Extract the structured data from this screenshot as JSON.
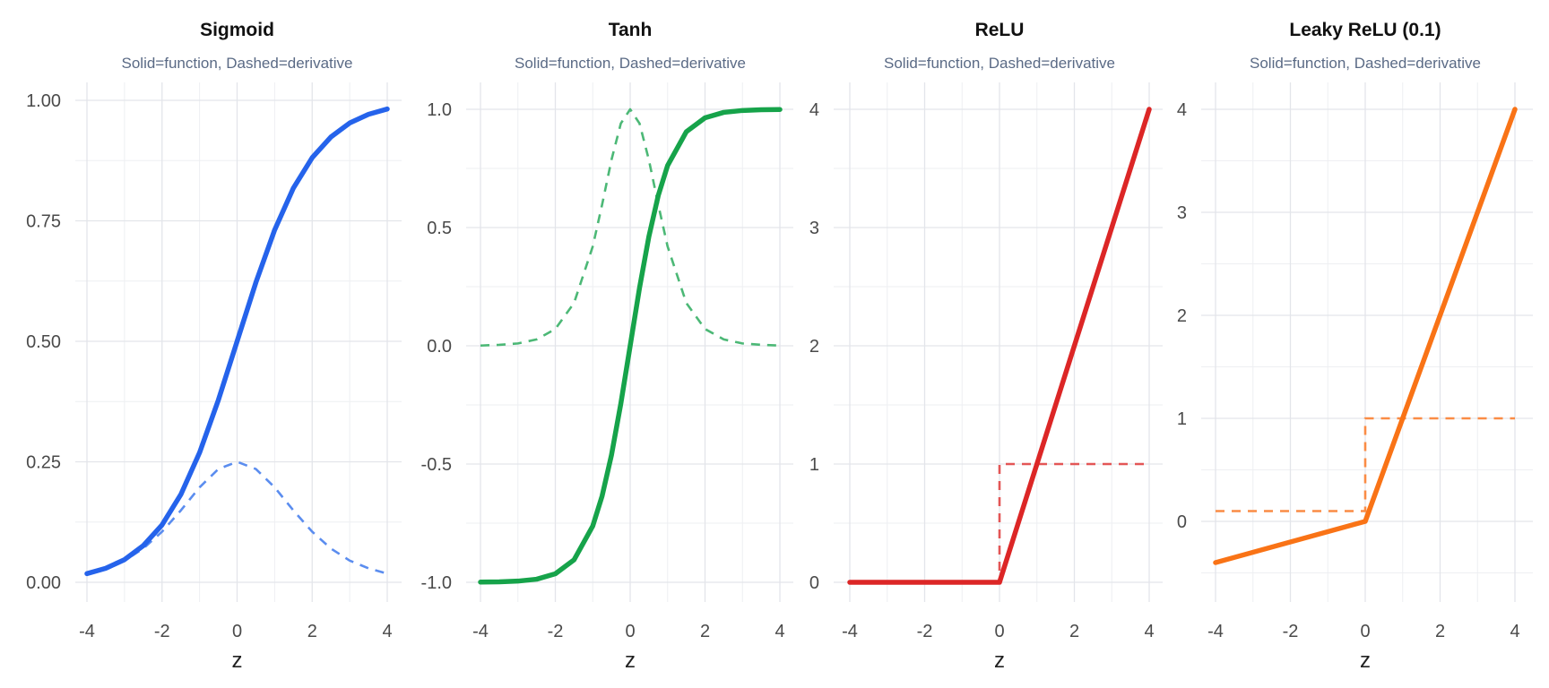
{
  "figure": {
    "subtitle": "Solid=function, Dashed=derivative",
    "xlabel": "z"
  },
  "chart_data": [
    {
      "type": "line",
      "title": "Sigmoid",
      "subtitle": "Solid=function, Dashed=derivative",
      "xlabel": "z",
      "ylabel": "",
      "xlim": [
        -4,
        4
      ],
      "ylim": [
        0,
        1
      ],
      "x_ticks": [
        "-4",
        "-2",
        "0",
        "2",
        "4"
      ],
      "y_ticks": [
        "0.00",
        "0.25",
        "0.50",
        "0.75",
        "1.00"
      ],
      "color": "#2563eb",
      "deriv_color": "#5b8def",
      "grid": true,
      "series": [
        {
          "role": "function",
          "style": "solid",
          "x": [
            -4,
            -3.5,
            -3,
            -2.5,
            -2,
            -1.5,
            -1,
            -0.5,
            0,
            0.5,
            1,
            1.5,
            2,
            2.5,
            3,
            3.5,
            4
          ],
          "y": [
            0.018,
            0.029,
            0.047,
            0.076,
            0.119,
            0.182,
            0.269,
            0.378,
            0.5,
            0.622,
            0.731,
            0.818,
            0.881,
            0.924,
            0.953,
            0.971,
            0.982
          ]
        },
        {
          "role": "derivative",
          "style": "dashed",
          "x": [
            -4,
            -3.5,
            -3,
            -2.5,
            -2,
            -1.5,
            -1,
            -0.5,
            0,
            0.5,
            1,
            1.5,
            2,
            2.5,
            3,
            3.5,
            4
          ],
          "y": [
            0.018,
            0.029,
            0.045,
            0.07,
            0.105,
            0.149,
            0.197,
            0.235,
            0.25,
            0.235,
            0.197,
            0.149,
            0.105,
            0.07,
            0.045,
            0.029,
            0.018
          ]
        }
      ]
    },
    {
      "type": "line",
      "title": "Tanh",
      "subtitle": "Solid=function, Dashed=derivative",
      "xlabel": "z",
      "ylabel": "",
      "xlim": [
        -4,
        4
      ],
      "ylim": [
        -1,
        1
      ],
      "x_ticks": [
        "-4",
        "-2",
        "0",
        "2",
        "4"
      ],
      "y_ticks": [
        "-1.0",
        "-0.5",
        "0.0",
        "0.5",
        "1.0"
      ],
      "color": "#16a34a",
      "deriv_color": "#4cb876",
      "grid": true,
      "series": [
        {
          "role": "function",
          "style": "solid",
          "x": [
            -4,
            -3.5,
            -3,
            -2.5,
            -2,
            -1.5,
            -1,
            -0.75,
            -0.5,
            -0.25,
            0,
            0.25,
            0.5,
            0.75,
            1,
            1.5,
            2,
            2.5,
            3,
            3.5,
            4
          ],
          "y": [
            -0.999,
            -0.998,
            -0.995,
            -0.987,
            -0.964,
            -0.905,
            -0.762,
            -0.635,
            -0.462,
            -0.245,
            0,
            0.245,
            0.462,
            0.635,
            0.762,
            0.905,
            0.964,
            0.987,
            0.995,
            0.998,
            0.999
          ]
        },
        {
          "role": "derivative",
          "style": "dashed",
          "x": [
            -4,
            -3.5,
            -3,
            -2.5,
            -2,
            -1.5,
            -1,
            -0.75,
            -0.5,
            -0.25,
            0,
            0.25,
            0.5,
            0.75,
            1,
            1.5,
            2,
            2.5,
            3,
            3.5,
            4
          ],
          "y": [
            0.001,
            0.004,
            0.01,
            0.027,
            0.071,
            0.181,
            0.42,
            0.597,
            0.786,
            0.94,
            1,
            0.94,
            0.786,
            0.597,
            0.42,
            0.181,
            0.071,
            0.027,
            0.01,
            0.004,
            0.001
          ]
        }
      ]
    },
    {
      "type": "line",
      "title": "ReLU",
      "subtitle": "Solid=function, Dashed=derivative",
      "xlabel": "z",
      "ylabel": "",
      "xlim": [
        -4,
        4
      ],
      "ylim": [
        0,
        4
      ],
      "x_ticks": [
        "-4",
        "-2",
        "0",
        "2",
        "4"
      ],
      "y_ticks": [
        "0",
        "1",
        "2",
        "3",
        "4"
      ],
      "color": "#dc2626",
      "deriv_color": "#e35656",
      "grid": true,
      "series": [
        {
          "role": "function",
          "style": "solid",
          "x": [
            -4,
            0,
            4
          ],
          "y": [
            0,
            0,
            4
          ]
        },
        {
          "role": "derivative",
          "style": "dashed",
          "x": [
            -4,
            0,
            0,
            4
          ],
          "y": [
            0,
            0,
            1,
            1
          ]
        }
      ]
    },
    {
      "type": "line",
      "title": "Leaky ReLU (0.1)",
      "subtitle": "Solid=function, Dashed=derivative",
      "xlabel": "z",
      "ylabel": "",
      "xlim": [
        -4,
        4
      ],
      "ylim": [
        -0.4,
        4
      ],
      "x_ticks": [
        "-4",
        "-2",
        "0",
        "2",
        "4"
      ],
      "y_ticks": [
        "0",
        "1",
        "2",
        "3",
        "4"
      ],
      "color": "#f97316",
      "deriv_color": "#fa8c45",
      "grid": true,
      "series": [
        {
          "role": "function",
          "style": "solid",
          "x": [
            -4,
            0,
            4
          ],
          "y": [
            -0.4,
            0,
            4
          ]
        },
        {
          "role": "derivative",
          "style": "dashed",
          "x": [
            -4,
            0,
            0,
            4
          ],
          "y": [
            0.1,
            0.1,
            1,
            1
          ]
        }
      ]
    }
  ]
}
